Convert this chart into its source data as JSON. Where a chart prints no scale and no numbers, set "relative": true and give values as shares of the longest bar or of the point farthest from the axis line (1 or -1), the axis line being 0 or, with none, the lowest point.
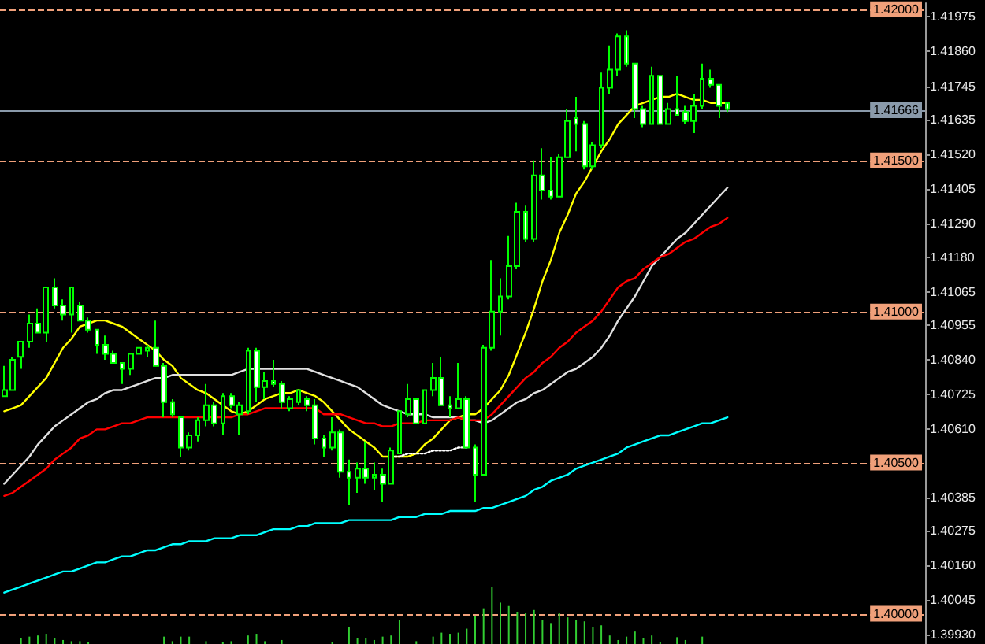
{
  "chart_data": [
    {
      "type": "candlestick",
      "color": "#00ff00",
      "line_style": "solid",
      "tick_labels": "y",
      "categories": [
        null,
        null,
        null,
        null,
        null,
        null,
        null,
        null,
        null,
        null,
        null,
        null,
        null,
        null,
        null,
        null,
        null,
        null,
        null,
        null,
        null,
        null,
        null,
        null,
        null,
        null,
        null,
        null,
        null,
        null,
        null,
        null,
        null,
        null,
        null,
        null,
        null,
        null,
        null,
        null,
        null,
        null,
        null,
        null,
        null,
        null,
        null,
        null,
        null,
        null,
        null,
        null,
        null,
        null,
        null,
        null,
        null,
        null,
        null,
        null,
        null,
        null,
        null,
        null,
        null,
        null,
        null,
        null,
        null,
        null,
        null,
        null,
        null,
        null,
        null,
        null,
        null,
        null,
        null,
        null,
        null,
        null,
        null,
        null,
        null,
        null,
        null
      ],
      "ohlc": [
        [
          1.4072,
          1.4082,
          1.4072,
          1.4074
        ],
        [
          1.4074,
          1.4085,
          1.4074,
          1.4084
        ],
        [
          1.4085,
          1.409,
          1.4081,
          1.409
        ],
        [
          1.409,
          1.4099,
          1.4088,
          1.4096
        ],
        [
          1.4096,
          1.4101,
          1.4093,
          1.4093
        ],
        [
          1.4093,
          1.4108,
          1.409,
          1.4108
        ],
        [
          1.4108,
          1.4111,
          1.4101,
          1.4102
        ],
        [
          1.4102,
          1.4104,
          1.4097,
          1.4099
        ],
        [
          1.4099,
          1.4108,
          1.4093,
          1.4108
        ],
        [
          1.4102,
          1.4103,
          1.4097,
          1.4097
        ],
        [
          1.4097,
          1.4098,
          1.4093,
          1.4094
        ],
        [
          1.4094,
          1.4094,
          1.4086,
          1.4089
        ],
        [
          1.4089,
          1.4092,
          1.4084,
          1.4086
        ],
        [
          1.4086,
          1.4087,
          1.4083,
          1.4083
        ],
        [
          1.4083,
          1.4083,
          1.4076,
          1.4081
        ],
        [
          1.4081,
          1.4086,
          1.4079,
          1.4086
        ],
        [
          1.4086,
          1.4088,
          1.4086,
          1.4088
        ],
        [
          1.4087,
          1.4089,
          1.4085,
          1.4088
        ],
        [
          1.4088,
          1.4097,
          1.4082,
          1.4082
        ],
        [
          1.4082,
          1.4083,
          1.4065,
          1.407
        ],
        [
          1.407,
          1.4071,
          1.4065,
          1.4066
        ],
        [
          1.4065,
          1.4065,
          1.4052,
          1.4055
        ],
        [
          1.4055,
          1.406,
          1.4054,
          1.4059
        ],
        [
          1.4059,
          1.4065,
          1.4057,
          1.4064
        ],
        [
          1.4064,
          1.4076,
          1.4062,
          1.4069
        ],
        [
          1.4069,
          1.407,
          1.4062,
          1.4063
        ],
        [
          1.4063,
          1.4073,
          1.4059,
          1.4072
        ],
        [
          1.4072,
          1.4073,
          1.4068,
          1.4069
        ],
        [
          1.4066,
          1.407,
          1.4059,
          1.4069
        ],
        [
          1.4067,
          1.4088,
          1.4066,
          1.4087
        ],
        [
          1.4087,
          1.4088,
          1.407,
          1.4075
        ],
        [
          1.4075,
          1.408,
          1.4071,
          1.4077
        ],
        [
          1.4077,
          1.4084,
          1.4075,
          1.4076
        ],
        [
          1.4076,
          1.4077,
          1.4068,
          1.407
        ],
        [
          1.4068,
          1.4072,
          1.4067,
          1.4071
        ],
        [
          1.407,
          1.4074,
          1.4069,
          1.4074
        ],
        [
          1.4071,
          1.4072,
          1.4067,
          1.4069
        ],
        [
          1.4069,
          1.4071,
          1.4056,
          1.4058
        ],
        [
          1.4058,
          1.4059,
          1.4052,
          1.4055
        ],
        [
          1.4055,
          1.4065,
          1.4054,
          1.406
        ],
        [
          1.406,
          1.4061,
          1.4045,
          1.4047
        ],
        [
          1.4047,
          1.4051,
          1.4036,
          1.4045
        ],
        [
          1.4045,
          1.405,
          1.404,
          1.4048
        ],
        [
          1.4048,
          1.4057,
          1.4043,
          1.4045
        ],
        [
          1.4045,
          1.405,
          1.4041,
          1.4046
        ],
        [
          1.4046,
          1.4048,
          1.4037,
          1.4043
        ],
        [
          1.4043,
          1.4055,
          1.4043,
          1.4054
        ],
        [
          1.4053,
          1.4067,
          1.4053,
          1.4067
        ],
        [
          1.4066,
          1.4076,
          1.4065,
          1.4071
        ],
        [
          1.4071,
          1.4071,
          1.4063,
          1.4063
        ],
        [
          1.4063,
          1.4074,
          1.4063,
          1.4074
        ],
        [
          1.4074,
          1.4083,
          1.4072,
          1.4078
        ],
        [
          1.4078,
          1.4085,
          1.4069,
          1.4069
        ],
        [
          1.4069,
          1.4072,
          1.4065,
          1.4068
        ],
        [
          1.4068,
          1.4083,
          1.4068,
          1.4071
        ],
        [
          1.4071,
          1.4072,
          1.4055,
          1.4055
        ],
        [
          1.4055,
          1.4056,
          1.4037,
          1.4046
        ],
        [
          1.4046,
          1.4089,
          1.4046,
          1.4088
        ],
        [
          1.4088,
          1.4117,
          1.4087,
          1.41
        ],
        [
          1.41,
          1.4111,
          1.4092,
          1.4105
        ],
        [
          1.4105,
          1.4125,
          1.4104,
          1.4115
        ],
        [
          1.4115,
          1.4136,
          1.4114,
          1.4133
        ],
        [
          1.4133,
          1.4135,
          1.4123,
          1.4124
        ],
        [
          1.4124,
          1.415,
          1.4123,
          1.4145
        ],
        [
          1.4145,
          1.4154,
          1.4137,
          1.414
        ],
        [
          1.414,
          1.4151,
          1.4137,
          1.4138
        ],
        [
          1.4138,
          1.4152,
          1.4138,
          1.4151
        ],
        [
          1.4151,
          1.4167,
          1.4151,
          1.4163
        ],
        [
          1.4164,
          1.4171,
          1.4153,
          1.4162
        ],
        [
          1.4162,
          1.4163,
          1.4147,
          1.4148
        ],
        [
          1.4148,
          1.4156,
          1.4147,
          1.4155
        ],
        [
          1.4155,
          1.4179,
          1.4154,
          1.4174
        ],
        [
          1.4174,
          1.4188,
          1.4172,
          1.418
        ],
        [
          1.418,
          1.4192,
          1.4178,
          1.4191
        ],
        [
          1.4191,
          1.4193,
          1.4181,
          1.4182
        ],
        [
          1.4182,
          1.4182,
          1.4164,
          1.4167
        ],
        [
          1.4167,
          1.4168,
          1.4161,
          1.4162
        ],
        [
          1.4162,
          1.4181,
          1.4162,
          1.4178
        ],
        [
          1.4178,
          1.4178,
          1.4162,
          1.4162
        ],
        [
          1.4162,
          1.4169,
          1.4162,
          1.4167
        ],
        [
          1.4167,
          1.4178,
          1.4165,
          1.4165
        ],
        [
          1.4166,
          1.4168,
          1.4162,
          1.4163
        ],
        [
          1.4163,
          1.4172,
          1.4159,
          1.4168
        ],
        [
          1.4168,
          1.4182,
          1.4167,
          1.4177
        ],
        [
          1.4177,
          1.418,
          1.4174,
          1.4175
        ],
        [
          1.4175,
          1.4175,
          1.4164,
          1.4168
        ],
        [
          1.4169,
          1.4169,
          1.4166,
          1.4167
        ]
      ],
      "series": [
        {
          "type": "line",
          "color": "#ffff00",
          "values": [
            1.4067,
            1.4068,
            1.4069,
            1.4072,
            1.4075,
            1.4078,
            1.4083,
            1.4088,
            1.4091,
            1.4095,
            1.4096,
            1.4097,
            1.4097,
            1.4096,
            1.4095,
            1.4093,
            1.4091,
            1.4089,
            1.4087,
            1.4084,
            1.4082,
            1.4078,
            1.4076,
            1.4074,
            1.4073,
            1.4071,
            1.4069,
            1.4067,
            1.4066,
            1.4067,
            1.4069,
            1.4071,
            1.4072,
            1.4073,
            1.4073,
            1.4074,
            1.4073,
            1.4072,
            1.407,
            1.4067,
            1.4064,
            1.4061,
            1.4059,
            1.4057,
            1.4055,
            1.4052,
            1.4052,
            1.4052,
            1.4052,
            1.4053,
            1.4056,
            1.4058,
            1.4061,
            1.4064,
            1.4065,
            1.4066,
            1.4066,
            1.4068,
            1.4071,
            1.4074,
            1.4079,
            1.4086,
            1.4093,
            1.4101,
            1.411,
            1.4117,
            1.4126,
            1.4132,
            1.4139,
            1.4143,
            1.4148,
            1.4153,
            1.4157,
            1.4162,
            1.4165,
            1.4168,
            1.4169,
            1.417,
            1.4171,
            1.4171,
            1.4172,
            1.4171,
            1.417,
            1.417,
            1.4169,
            1.4169,
            1.4169
          ]
        },
        {
          "type": "line",
          "color": "#e0e0e0",
          "values": [
            1.4043,
            1.4046,
            1.4049,
            1.4052,
            1.4056,
            1.4059,
            1.4062,
            1.4064,
            1.4066,
            1.4068,
            1.407,
            1.4071,
            1.4073,
            1.4074,
            1.4074,
            1.4075,
            1.4076,
            1.4077,
            1.4078,
            1.4078,
            1.4079,
            1.4079,
            1.4079,
            1.4079,
            1.4079,
            1.4079,
            1.4079,
            1.4079,
            1.408,
            1.4081,
            1.4081,
            1.4081,
            1.4081,
            1.4081,
            1.4081,
            1.4081,
            1.4081,
            1.408,
            1.4079,
            1.4078,
            1.4077,
            1.4076,
            1.4075,
            1.4073,
            1.4071,
            1.4069,
            1.4068,
            1.4067,
            1.4066,
            1.4066,
            1.4066,
            1.4065,
            1.4065,
            1.4065,
            1.4065,
            1.4064,
            1.4064,
            1.4063,
            1.4064,
            1.4066,
            1.4068,
            1.407,
            1.4071,
            1.4073,
            1.4074,
            1.4076,
            1.4078,
            1.408,
            1.4081,
            1.4083,
            1.4085,
            1.4088,
            1.4092,
            1.4097,
            1.4101,
            1.4105,
            1.411,
            1.4115,
            1.4118,
            1.4121,
            1.4124,
            1.4126,
            1.4129,
            1.4132,
            1.4135,
            1.4138,
            1.4141
          ]
        },
        {
          "type": "line",
          "color": "#ff0000",
          "values": [
            1.4039,
            1.404,
            1.4042,
            1.4044,
            1.4046,
            1.4048,
            1.4051,
            1.4053,
            1.4055,
            1.4058,
            1.4059,
            1.4061,
            1.4061,
            1.4062,
            1.4063,
            1.4063,
            1.4064,
            1.4065,
            1.4065,
            1.4065,
            1.4065,
            1.4065,
            1.4065,
            1.4065,
            1.4065,
            1.4065,
            1.4065,
            1.4065,
            1.4066,
            1.4066,
            1.4067,
            1.4068,
            1.4068,
            1.4068,
            1.4068,
            1.4068,
            1.4068,
            1.4068,
            1.4066,
            1.4066,
            1.4066,
            1.4065,
            1.4064,
            1.4063,
            1.4063,
            1.4062,
            1.4062,
            1.4063,
            1.4063,
            1.4063,
            1.4064,
            1.4064,
            1.4064,
            1.4064,
            1.4065,
            1.4064,
            1.4064,
            1.4064,
            1.4066,
            1.4069,
            1.4072,
            1.4075,
            1.4078,
            1.408,
            1.4083,
            1.4085,
            1.4088,
            1.409,
            1.4093,
            1.4095,
            1.4097,
            1.41,
            1.4104,
            1.4108,
            1.411,
            1.4111,
            1.4114,
            1.4116,
            1.4118,
            1.4119,
            1.4121,
            1.4123,
            1.4124,
            1.4126,
            1.4128,
            1.4129,
            1.4131
          ]
        },
        {
          "type": "line",
          "color": "#00ffff",
          "values": [
            1.4007,
            1.4008,
            1.4009,
            1.401,
            1.4011,
            1.4012,
            1.4013,
            1.4014,
            1.4014,
            1.4015,
            1.4016,
            1.4017,
            1.4017,
            1.4018,
            1.4019,
            1.4019,
            1.402,
            1.4021,
            1.4021,
            1.4022,
            1.4023,
            1.4023,
            1.4024,
            1.4024,
            1.4024,
            1.4025,
            1.4025,
            1.4025,
            1.4026,
            1.4026,
            1.4026,
            1.4027,
            1.4028,
            1.4028,
            1.4028,
            1.4029,
            1.4029,
            1.403,
            1.403,
            1.403,
            1.403,
            1.4031,
            1.4031,
            1.4031,
            1.4031,
            1.4031,
            1.4031,
            1.4032,
            1.4032,
            1.4032,
            1.4033,
            1.4033,
            1.4033,
            1.4034,
            1.4034,
            1.4034,
            1.4034,
            1.4035,
            1.4035,
            1.4036,
            1.4037,
            1.4038,
            1.4039,
            1.4041,
            1.4042,
            1.4044,
            1.4045,
            1.4046,
            1.4048,
            1.4049,
            1.405,
            1.4051,
            1.4052,
            1.4053,
            1.4055,
            1.4056,
            1.4057,
            1.4058,
            1.4059,
            1.4059,
            1.406,
            1.4061,
            1.4062,
            1.4063,
            1.4063,
            1.4064,
            1.4065
          ]
        },
        {
          "type": "line",
          "color": "#ffffff",
          "line_style": "dotted",
          "values": [
            null,
            null,
            null,
            null,
            null,
            null,
            null,
            null,
            null,
            null,
            null,
            null,
            null,
            null,
            null,
            null,
            null,
            null,
            null,
            null,
            null,
            null,
            null,
            null,
            null,
            null,
            null,
            null,
            null,
            null,
            null,
            null,
            null,
            null,
            null,
            null,
            null,
            null,
            null,
            null,
            null,
            null,
            null,
            null,
            null,
            null,
            1.4052,
            1.4052,
            1.4053,
            1.4053,
            1.4053,
            1.4054,
            1.4054,
            1.4054,
            1.4055,
            1.4055,
            null,
            null,
            null,
            null,
            null,
            null,
            null,
            null,
            null,
            null,
            null,
            null,
            null,
            null,
            null,
            null,
            null,
            null,
            null,
            null,
            null,
            null,
            null,
            null,
            null,
            null,
            null,
            null,
            null,
            null,
            null
          ]
        }
      ],
      "ylim": [
        1.399,
        1.4202
      ],
      "yticks": [
        1.41975,
        {
          "value": 1.4186,
          "label": "1.41860"
        },
        1.41745,
        1.41635,
        {
          "value": 1.4152,
          "label": "1.41520"
        },
        1.41405,
        {
          "value": 1.4129,
          "label": "1.41290"
        },
        {
          "value": 1.4118,
          "label": "1.41180"
        },
        1.41065,
        1.40955,
        {
          "value": 1.4084,
          "label": "1.40840"
        },
        1.40725,
        {
          "value": 1.4061,
          "label": "1.40610"
        },
        1.40385,
        1.40275,
        {
          "value": 1.4016,
          "label": "1.40160"
        },
        1.40045,
        {
          "value": 1.3993,
          "label": "1.39930"
        }
      ],
      "ref_lines": [
        {
          "axis": "y",
          "value": 1.42,
          "label": "1.42000",
          "color": "#f0a07a",
          "line_style": "dashed"
        },
        {
          "axis": "y",
          "value": 1.415,
          "label": "1.41500",
          "color": "#f0a07a",
          "line_style": "dashed"
        },
        {
          "axis": "y",
          "value": 1.41,
          "label": "1.41000",
          "color": "#f0a07a",
          "line_style": "dashed"
        },
        {
          "axis": "y",
          "value": 1.405,
          "label": "1.40500",
          "color": "#f0a07a",
          "line_style": "dashed"
        },
        {
          "axis": "y",
          "value": 1.4,
          "label": "1.40000",
          "color": "#f0a07a",
          "line_style": "dashed"
        },
        {
          "axis": "y",
          "value": 1.41666,
          "label": "1.41666",
          "color": "#8a9aaa",
          "line_style": "solid"
        }
      ]
    },
    {
      "type": "bar",
      "relative": true,
      "color": "#32cd32",
      "tick_labels": false,
      "categories": [
        null,
        null,
        null,
        null,
        null,
        null,
        null,
        null,
        null,
        null,
        null,
        null,
        null,
        null,
        null,
        null,
        null,
        null,
        null,
        null,
        null,
        null,
        null,
        null,
        null,
        null,
        null,
        null,
        null,
        null,
        null,
        null,
        null,
        null,
        null,
        null,
        null,
        null,
        null,
        null,
        null,
        null,
        null,
        null,
        null,
        null,
        null,
        null,
        null,
        null,
        null,
        null,
        null,
        null,
        null,
        null,
        null,
        null,
        null,
        null,
        null,
        null,
        null,
        null,
        null,
        null,
        null,
        null,
        null,
        null,
        null,
        null,
        null,
        null,
        null,
        null,
        null,
        null,
        null,
        null,
        null,
        null,
        null,
        null,
        null,
        null,
        null
      ],
      "values": [
        0,
        0,
        0.1,
        0.13,
        0.15,
        0.18,
        0.1,
        0.07,
        0.05,
        0.05,
        0.03,
        0,
        0,
        0,
        0,
        0,
        0,
        0,
        0,
        0.13,
        0.05,
        0.13,
        0.13,
        0,
        0.05,
        0,
        0.03,
        0.05,
        0,
        0.15,
        0.18,
        0.05,
        0,
        0.07,
        0,
        0,
        0,
        0,
        0,
        0.03,
        0,
        0.3,
        0.1,
        0.1,
        0.07,
        0.13,
        0.15,
        0.42,
        0,
        0.05,
        0,
        0.13,
        0.2,
        0.18,
        0.2,
        0.27,
        0.5,
        0.63,
        1,
        0.73,
        0.67,
        0.57,
        0.55,
        0.6,
        0.43,
        0.37,
        0.55,
        0.47,
        0.43,
        0.4,
        0.3,
        0.33,
        0.15,
        0.07,
        0.13,
        0.22,
        0.1,
        0.15,
        0.03,
        0,
        0.12,
        0.07,
        0,
        0.13,
        0,
        0,
        0
      ]
    }
  ]
}
